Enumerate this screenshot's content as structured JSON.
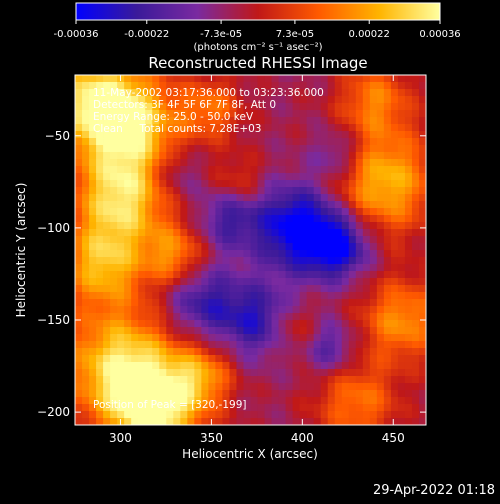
{
  "chart_data": {
    "type": "heatmap",
    "title": "Reconstructed RHESSI Image",
    "xlabel": "Heliocentric X (arcsec)",
    "ylabel": "Heliocentric Y (arcsec)",
    "xlim": [
      275,
      468
    ],
    "ylim": [
      -207,
      -17
    ],
    "x_ticks": [
      300,
      350,
      400,
      450
    ],
    "y_ticks": [
      -50,
      -100,
      -150,
      -200
    ],
    "colorbar": {
      "range": [
        -0.00036,
        0.00036
      ],
      "tick_values": [
        -0.00036,
        -0.00022,
        -7.3e-05,
        7.3e-05,
        0.00022,
        0.00036
      ],
      "tick_labels": [
        "-0.00036",
        "-0.00022",
        "-7.3e-05",
        "7.3e-05",
        "0.00022",
        "0.00036"
      ],
      "units": "(photons cm⁻² s⁻¹ asec⁻²)",
      "colors": [
        "#0000ff",
        "#3a1a9a",
        "#7a2aa0",
        "#c01818",
        "#ff5a00",
        "#ffb400",
        "#ffffa0"
      ]
    },
    "annotations": [
      "11-May-2002 03:17:36.000 to 03:23:36.000",
      "Detectors: 3F 4F 5F 6F 7F 8F, Att 0",
      "Energy Range: 25.0 - 50.0 keV",
      "Clean     Total counts: 7.28E+03"
    ],
    "position_note": "Position of Peak = [320,-199]",
    "grid": false,
    "legend": "none",
    "peak": [
      320,
      -199
    ],
    "blobs": [
      {
        "x": 305,
        "y": -45,
        "r": 20,
        "v": 0.00034
      },
      {
        "x": 285,
        "y": -30,
        "r": 18,
        "v": 0.0003
      },
      {
        "x": 300,
        "y": -85,
        "r": 18,
        "v": 0.00033
      },
      {
        "x": 290,
        "y": -120,
        "r": 16,
        "v": 0.00028
      },
      {
        "x": 330,
        "y": -115,
        "r": 12,
        "v": 0.00022
      },
      {
        "x": 300,
        "y": -175,
        "r": 22,
        "v": 0.00035
      },
      {
        "x": 320,
        "y": -199,
        "r": 18,
        "v": 0.00036
      },
      {
        "x": 345,
        "y": -180,
        "r": 12,
        "v": 0.0002
      },
      {
        "x": 350,
        "y": -35,
        "r": 12,
        "v": 0.00018
      },
      {
        "x": 365,
        "y": -75,
        "r": 10,
        "v": 0.00012
      },
      {
        "x": 445,
        "y": -75,
        "r": 20,
        "v": 0.0003
      },
      {
        "x": 440,
        "y": -30,
        "r": 14,
        "v": 0.0002
      },
      {
        "x": 455,
        "y": -150,
        "r": 16,
        "v": 0.00024
      },
      {
        "x": 430,
        "y": -195,
        "r": 16,
        "v": 0.0002
      },
      {
        "x": 395,
        "y": -155,
        "r": 10,
        "v": 0.00012
      },
      {
        "x": 398,
        "y": -100,
        "r": 16,
        "v": -0.00034
      },
      {
        "x": 420,
        "y": -110,
        "r": 12,
        "v": -0.00028
      },
      {
        "x": 375,
        "y": -150,
        "r": 14,
        "v": -0.00022
      },
      {
        "x": 345,
        "y": -140,
        "r": 14,
        "v": -0.0002
      },
      {
        "x": 360,
        "y": -95,
        "r": 12,
        "v": -0.00018
      },
      {
        "x": 420,
        "y": -60,
        "r": 10,
        "v": -0.00015
      },
      {
        "x": 330,
        "y": -70,
        "r": 10,
        "v": -0.00012
      },
      {
        "x": 415,
        "y": -165,
        "r": 10,
        "v": -0.00016
      }
    ]
  },
  "footer": {
    "timestamp": "29-Apr-2022 01:18"
  }
}
